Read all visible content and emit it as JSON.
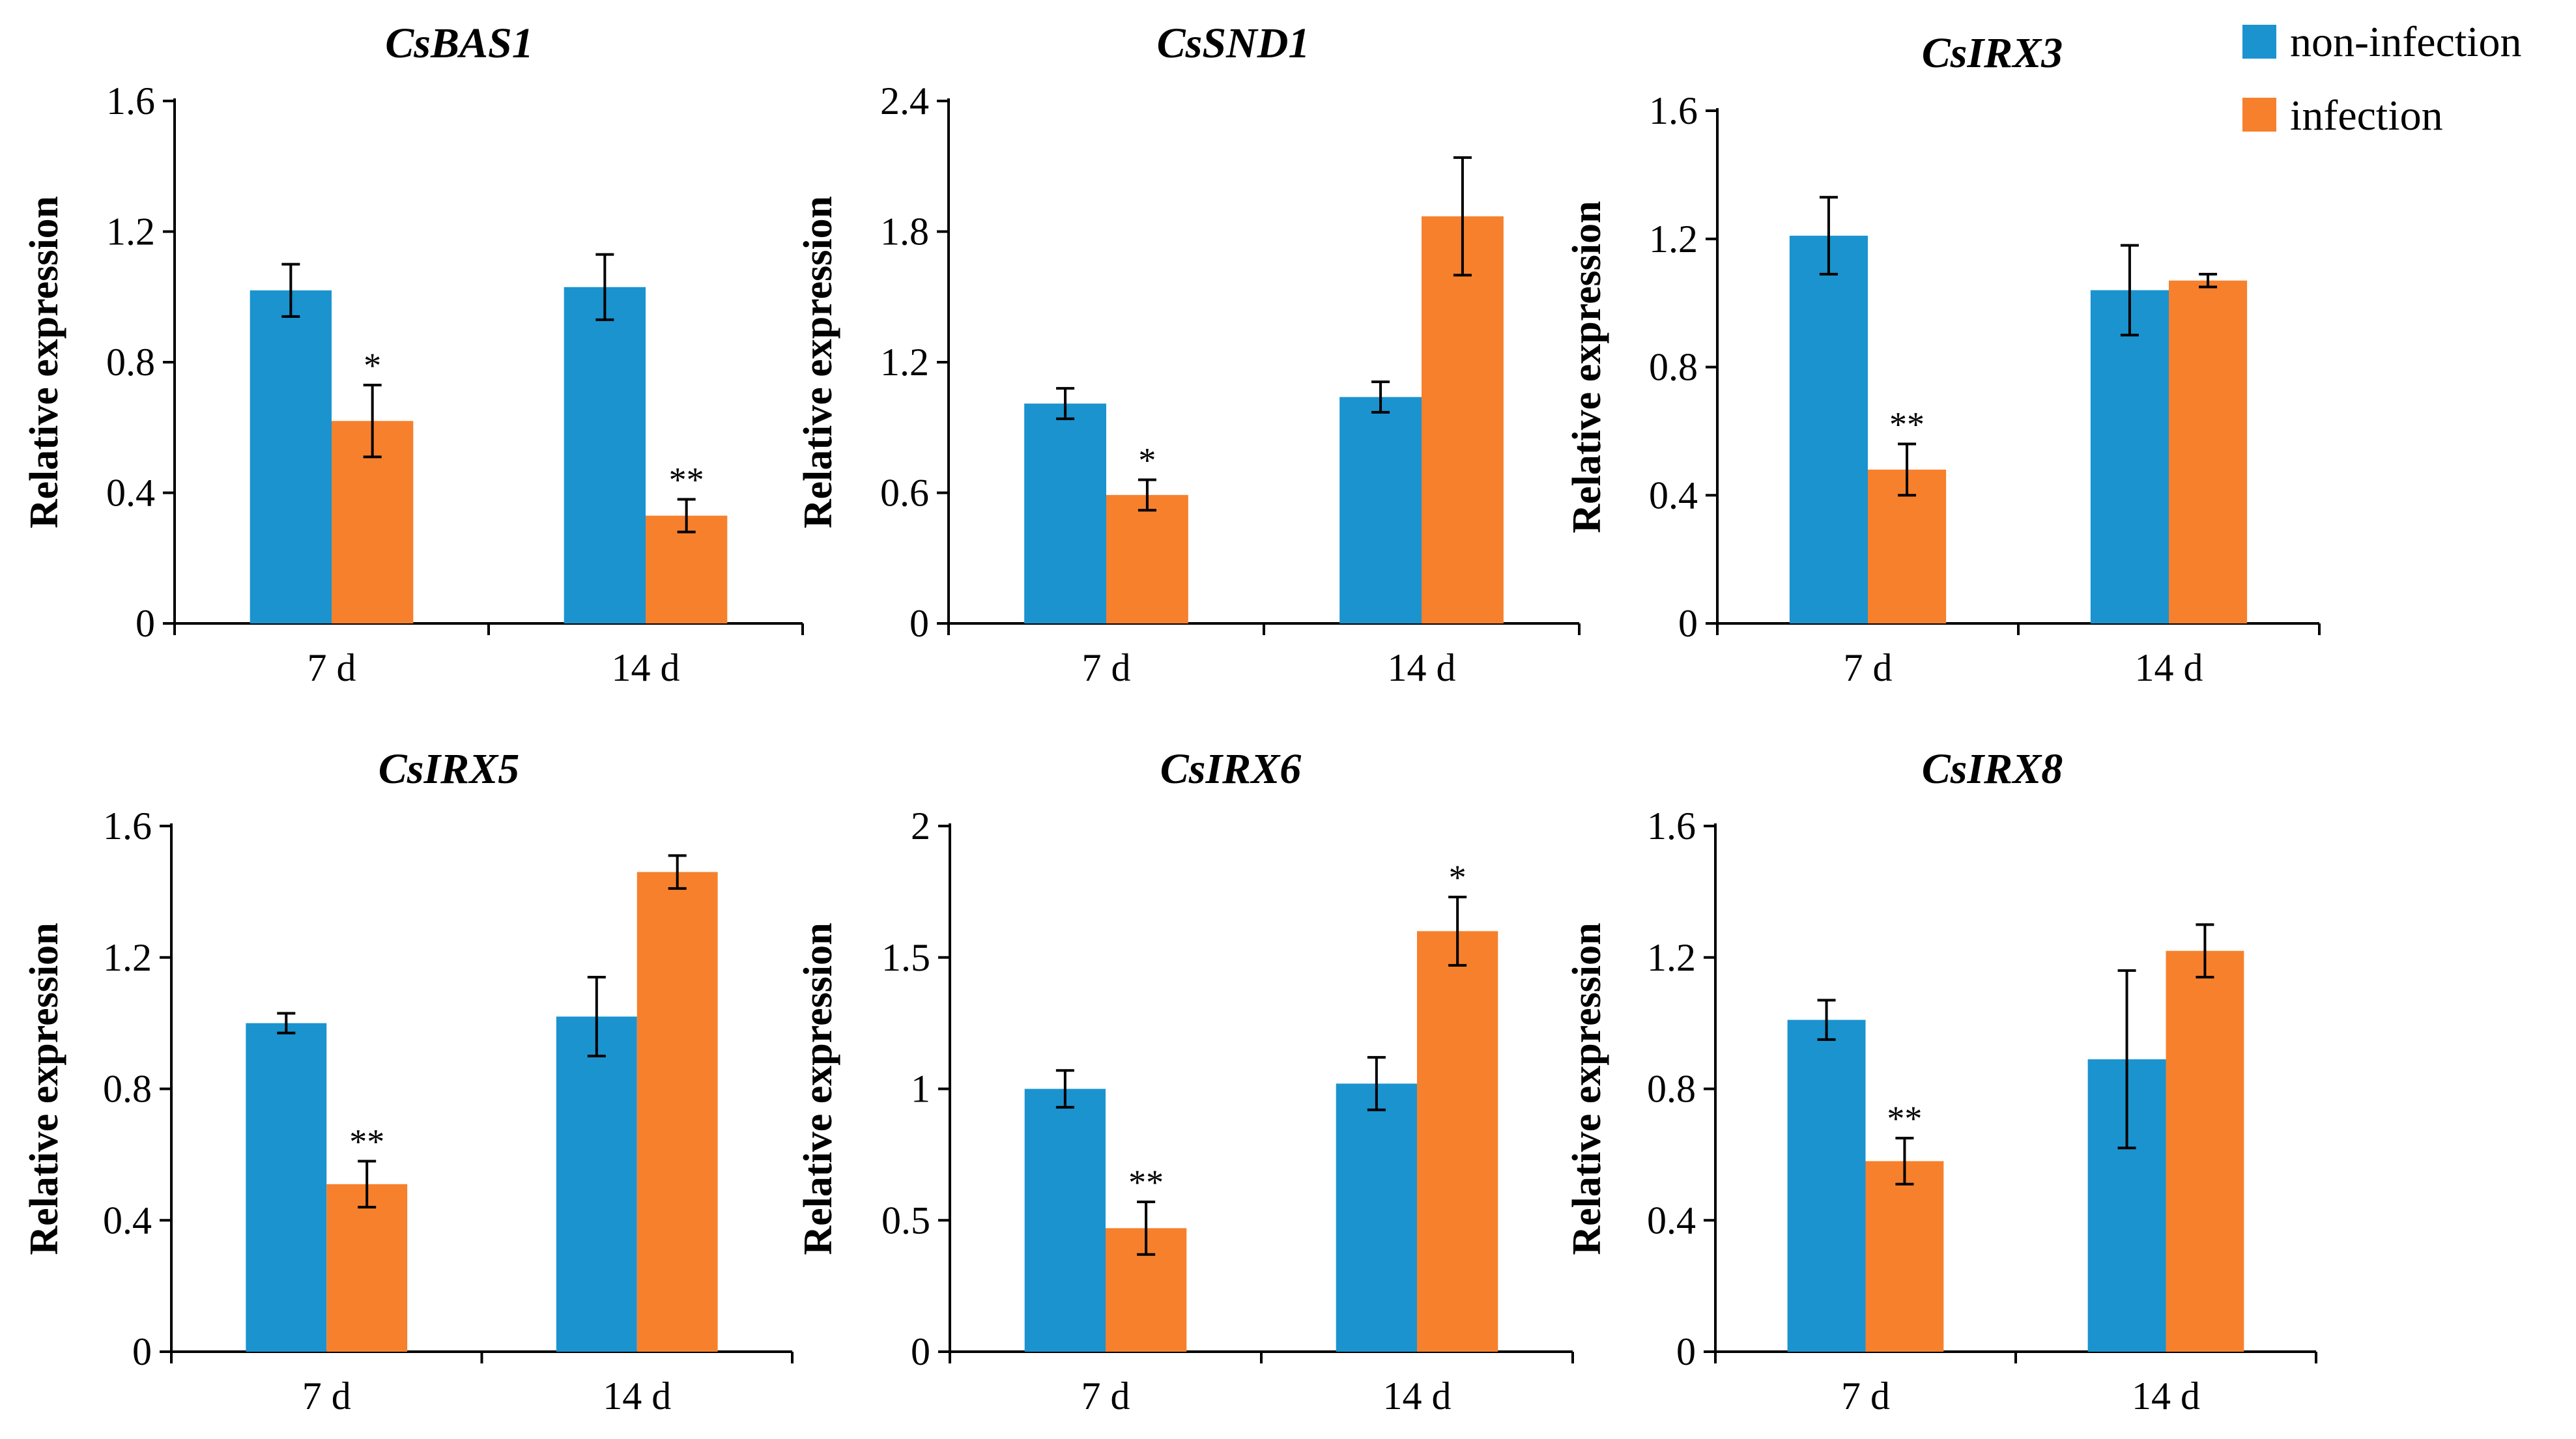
{
  "colors": {
    "non_infection": "#1B93CF",
    "infection": "#F7802D"
  },
  "legend": {
    "items": [
      "non-infection",
      "infection"
    ]
  },
  "chart_data": [
    {
      "type": "bar",
      "title": "CsBAS1",
      "ylabel": "Relative expression",
      "xlabel": "",
      "categories": [
        "7 d",
        "14 d"
      ],
      "ylim": [
        0,
        1.6
      ],
      "yticks": [
        0,
        0.4,
        0.8,
        1.2,
        1.6
      ],
      "ytick_labels": [
        "0",
        "0.4",
        "0.8",
        "1.2",
        "1.6"
      ],
      "series": [
        {
          "name": "non-infection",
          "values": [
            1.02,
            1.03
          ],
          "errors": [
            0.08,
            0.1
          ],
          "sig": [
            "",
            ""
          ]
        },
        {
          "name": "infection",
          "values": [
            0.62,
            0.33
          ],
          "errors": [
            0.11,
            0.05
          ],
          "sig": [
            "*",
            "**"
          ]
        }
      ]
    },
    {
      "type": "bar",
      "title": "CsSND1",
      "ylabel": "Relative expression",
      "xlabel": "",
      "categories": [
        "7 d",
        "14 d"
      ],
      "ylim": [
        0,
        2.4
      ],
      "yticks": [
        0,
        0.6,
        1.2,
        1.8,
        2.4
      ],
      "ytick_labels": [
        "0",
        "0.6",
        "1.2",
        "1.8",
        "2.4"
      ],
      "series": [
        {
          "name": "non-infection",
          "values": [
            1.01,
            1.04
          ],
          "errors": [
            0.07,
            0.07
          ],
          "sig": [
            "",
            ""
          ]
        },
        {
          "name": "infection",
          "values": [
            0.59,
            1.87
          ],
          "errors": [
            0.07,
            0.27
          ],
          "sig": [
            "*",
            ""
          ]
        }
      ]
    },
    {
      "type": "bar",
      "title": "CsIRX3",
      "ylabel": "Relative expression",
      "xlabel": "",
      "categories": [
        "7 d",
        "14 d"
      ],
      "ylim": [
        0,
        1.6
      ],
      "yticks": [
        0,
        0.4,
        0.8,
        1.2,
        1.6
      ],
      "ytick_labels": [
        "0",
        "0.4",
        "0.8",
        "1.2",
        "1.6"
      ],
      "series": [
        {
          "name": "non-infection",
          "values": [
            1.21,
            1.04
          ],
          "errors": [
            0.12,
            0.14
          ],
          "sig": [
            "",
            ""
          ]
        },
        {
          "name": "infection",
          "values": [
            0.48,
            1.07
          ],
          "errors": [
            0.08,
            0.02
          ],
          "sig": [
            "**",
            ""
          ]
        }
      ]
    },
    {
      "type": "bar",
      "title": "CsIRX5",
      "ylabel": "Relative expression",
      "xlabel": "",
      "categories": [
        "7 d",
        "14 d"
      ],
      "ylim": [
        0,
        1.6
      ],
      "yticks": [
        0,
        0.4,
        0.8,
        1.2,
        1.6
      ],
      "ytick_labels": [
        "0",
        "0.4",
        "0.8",
        "1.2",
        "1.6"
      ],
      "series": [
        {
          "name": "non-infection",
          "values": [
            1.0,
            1.02
          ],
          "errors": [
            0.03,
            0.12
          ],
          "sig": [
            "",
            ""
          ]
        },
        {
          "name": "infection",
          "values": [
            0.51,
            1.46
          ],
          "errors": [
            0.07,
            0.05
          ],
          "sig": [
            "**",
            ""
          ]
        }
      ]
    },
    {
      "type": "bar",
      "title": "CsIRX6",
      "ylabel": "Relative expression",
      "xlabel": "",
      "categories": [
        "7 d",
        "14 d"
      ],
      "ylim": [
        0,
        2.0
      ],
      "yticks": [
        0,
        0.5,
        1.0,
        1.5,
        2.0
      ],
      "ytick_labels": [
        "0",
        "0.5",
        "1",
        "1.5",
        "2"
      ],
      "series": [
        {
          "name": "non-infection",
          "values": [
            1.0,
            1.02
          ],
          "errors": [
            0.07,
            0.1
          ],
          "sig": [
            "",
            ""
          ]
        },
        {
          "name": "infection",
          "values": [
            0.47,
            1.6
          ],
          "errors": [
            0.1,
            0.13
          ],
          "sig": [
            "**",
            "*"
          ]
        }
      ]
    },
    {
      "type": "bar",
      "title": "CsIRX8",
      "ylabel": "Relative expression",
      "xlabel": "",
      "categories": [
        "7 d",
        "14 d"
      ],
      "ylim": [
        0,
        1.6
      ],
      "yticks": [
        0,
        0.4,
        0.8,
        1.2,
        1.6
      ],
      "ytick_labels": [
        "0",
        "0.4",
        "0.8",
        "1.2",
        "1.6"
      ],
      "series": [
        {
          "name": "non-infection",
          "values": [
            1.01,
            0.89
          ],
          "errors": [
            0.06,
            0.27
          ],
          "sig": [
            "",
            ""
          ]
        },
        {
          "name": "infection",
          "values": [
            0.58,
            1.22
          ],
          "errors": [
            0.07,
            0.08
          ],
          "sig": [
            "**",
            ""
          ]
        }
      ]
    }
  ]
}
